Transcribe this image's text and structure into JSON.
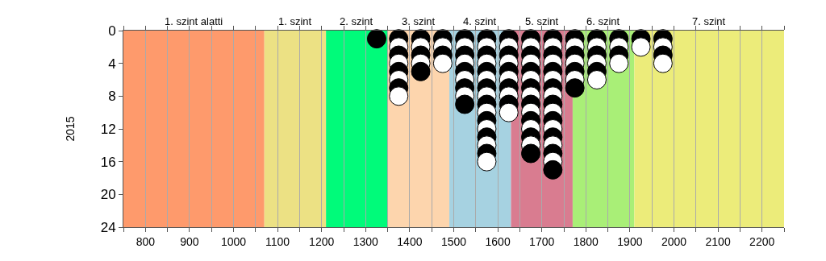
{
  "chart_data": {
    "type": "scatter",
    "ylabel": "2015",
    "xlim": [
      750,
      2250
    ],
    "ylim": [
      24,
      0
    ],
    "xticks": [
      {
        "value": 750,
        "label": null
      },
      800,
      {
        "value": 850,
        "label": null
      },
      900,
      {
        "value": 950,
        "label": null
      },
      1000,
      {
        "value": 1050,
        "label": null
      },
      1100,
      {
        "value": 1150,
        "label": null
      },
      1200,
      {
        "value": 1250,
        "label": null
      },
      1300,
      {
        "value": 1350,
        "label": null
      },
      1400,
      {
        "value": 1450,
        "label": null
      },
      1500,
      {
        "value": 1550,
        "label": null
      },
      1600,
      {
        "value": 1650,
        "label": null
      },
      1700,
      {
        "value": 1750,
        "label": null
      },
      1800,
      {
        "value": 1850,
        "label": null
      },
      1900,
      {
        "value": 1950,
        "label": null
      },
      2000,
      {
        "value": 2050,
        "label": null
      },
      2100,
      {
        "value": 2150,
        "label": null
      },
      2200,
      {
        "value": 2250,
        "label": null
      }
    ],
    "yticks": [
      0,
      4,
      8,
      12,
      16,
      20,
      24
    ],
    "grid": "x",
    "marker": "circle",
    "bands": [
      {
        "axis": "x",
        "from": 750,
        "to": 1070,
        "label": "1. szint alatti",
        "color": "#fe9a6c"
      },
      {
        "axis": "x",
        "from": 1070,
        "to": 1210,
        "label": "1. szint",
        "color": "#ece184"
      },
      {
        "axis": "x",
        "from": 1210,
        "to": 1350,
        "label": "2. szint",
        "color": "#00fb7a"
      },
      {
        "axis": "x",
        "from": 1350,
        "to": 1490,
        "label": "3. szint",
        "color": "#fdd5ad"
      },
      {
        "axis": "x",
        "from": 1490,
        "to": 1630,
        "label": "4. szint",
        "color": "#a6d2e1"
      },
      {
        "axis": "x",
        "from": 1630,
        "to": 1770,
        "label": "5. szint",
        "color": "#d97c90"
      },
      {
        "axis": "x",
        "from": 1770,
        "to": 1910,
        "label": "6. szint",
        "color": "#a9ef77"
      },
      {
        "axis": "x",
        "from": 1910,
        "to": 2250,
        "label": "7. szint",
        "color": "#ecec7a"
      }
    ],
    "series": [
      {
        "x": [
          1325,
          1375,
          1375,
          1375,
          1375,
          1375,
          1375,
          1375,
          1375,
          1425,
          1425,
          1425,
          1425,
          1425,
          1475,
          1475,
          1475,
          1475,
          1525,
          1525,
          1525,
          1525,
          1525,
          1525,
          1525,
          1525,
          1525,
          1575,
          1575,
          1575,
          1575,
          1575,
          1575,
          1575,
          1575,
          1575,
          1575,
          1575,
          1575,
          1575,
          1575,
          1575,
          1575,
          1625,
          1625,
          1625,
          1625,
          1625,
          1625,
          1625,
          1625,
          1625,
          1625,
          1675,
          1675,
          1675,
          1675,
          1675,
          1675,
          1675,
          1675,
          1675,
          1675,
          1675,
          1675,
          1675,
          1675,
          1675,
          1725,
          1725,
          1725,
          1725,
          1725,
          1725,
          1725,
          1725,
          1725,
          1725,
          1725,
          1725,
          1725,
          1725,
          1725,
          1725,
          1725,
          1775,
          1775,
          1775,
          1775,
          1775,
          1775,
          1775,
          1825,
          1825,
          1825,
          1825,
          1825,
          1825,
          1875,
          1875,
          1875,
          1875,
          1925,
          1925,
          1975,
          1975,
          1975,
          1975
        ],
        "values": [
          1,
          1,
          2,
          3,
          4,
          5,
          6,
          7,
          8,
          1,
          2,
          3,
          4,
          5,
          1,
          2,
          3,
          4,
          1,
          2,
          3,
          4,
          5,
          6,
          7,
          8,
          9,
          1,
          2,
          3,
          4,
          5,
          6,
          7,
          8,
          9,
          10,
          11,
          12,
          13,
          14,
          15,
          16,
          1,
          2,
          3,
          4,
          5,
          6,
          7,
          8,
          9,
          10,
          1,
          2,
          3,
          4,
          5,
          6,
          7,
          8,
          9,
          10,
          11,
          12,
          13,
          14,
          15,
          1,
          2,
          3,
          4,
          5,
          6,
          7,
          8,
          9,
          10,
          11,
          12,
          13,
          14,
          15,
          16,
          17,
          1,
          2,
          3,
          4,
          5,
          6,
          7,
          1,
          2,
          3,
          4,
          5,
          6,
          1,
          2,
          3,
          4,
          1,
          2,
          1,
          2,
          3,
          4
        ],
        "colors": [
          "#000000",
          "#000000",
          "#ffffff",
          "#000000",
          "#ffffff",
          "#000000",
          "#ffffff",
          "#000000",
          "#ffffff",
          "#000000",
          "#ffffff",
          "#000000",
          "#ffffff",
          "#000000",
          "#000000",
          "#ffffff",
          "#000000",
          "#ffffff",
          "#000000",
          "#ffffff",
          "#000000",
          "#ffffff",
          "#000000",
          "#ffffff",
          "#000000",
          "#ffffff",
          "#000000",
          "#000000",
          "#ffffff",
          "#000000",
          "#ffffff",
          "#000000",
          "#ffffff",
          "#000000",
          "#ffffff",
          "#000000",
          "#ffffff",
          "#000000",
          "#ffffff",
          "#000000",
          "#ffffff",
          "#000000",
          "#ffffff",
          "#000000",
          "#ffffff",
          "#000000",
          "#ffffff",
          "#000000",
          "#ffffff",
          "#000000",
          "#ffffff",
          "#000000",
          "#ffffff",
          "#000000",
          "#ffffff",
          "#000000",
          "#ffffff",
          "#000000",
          "#ffffff",
          "#000000",
          "#ffffff",
          "#000000",
          "#ffffff",
          "#000000",
          "#ffffff",
          "#000000",
          "#ffffff",
          "#000000",
          "#000000",
          "#ffffff",
          "#000000",
          "#ffffff",
          "#000000",
          "#ffffff",
          "#000000",
          "#ffffff",
          "#000000",
          "#ffffff",
          "#000000",
          "#ffffff",
          "#000000",
          "#ffffff",
          "#000000",
          "#ffffff",
          "#000000",
          "#000000",
          "#ffffff",
          "#000000",
          "#ffffff",
          "#000000",
          "#ffffff",
          "#000000",
          "#000000",
          "#ffffff",
          "#000000",
          "#ffffff",
          "#000000",
          "#ffffff",
          "#000000",
          "#ffffff",
          "#000000",
          "#ffffff",
          "#000000",
          "#ffffff",
          "#000000",
          "#ffffff",
          "#000000",
          "#ffffff"
        ]
      }
    ]
  }
}
